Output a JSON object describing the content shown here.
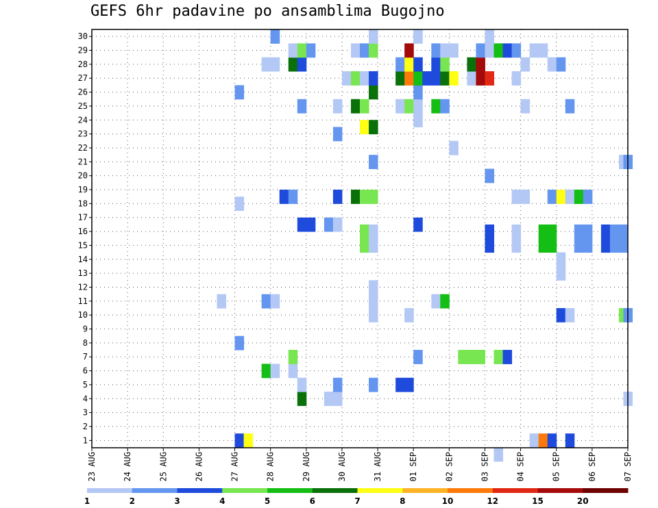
{
  "chart_data": {
    "type": "heatmap",
    "title": "GEFS 6hr padavine po ansamblima Bugojno",
    "xlabel": "",
    "ylabel": "",
    "x_labels": [
      "23 AUG",
      "24 AUG",
      "25 AUG",
      "26 AUG",
      "27 AUG",
      "28 AUG",
      "29 AUG",
      "30 AUG",
      "31 AUG",
      "01 SEP",
      "02 SEP",
      "03 SEP",
      "04 SEP",
      "05 SEP",
      "06 SEP",
      "07 SEP"
    ],
    "y_range": [
      1,
      30
    ],
    "x_range_days": [
      0,
      15
    ],
    "grid": true,
    "legend_placement": "bottom",
    "legend": {
      "labels": [
        "1",
        "2",
        "3",
        "4",
        "5",
        "6",
        "7",
        "8",
        "10",
        "12",
        "15",
        "20"
      ],
      "colors": [
        "#b4c8f5",
        "#6496f0",
        "#1e4bdc",
        "#78e650",
        "#14be14",
        "#0a700a",
        "#ffff14",
        "#ffb428",
        "#ff7a0a",
        "#e12814",
        "#a50a0a",
        "#6e0000"
      ]
    },
    "cells": [
      {
        "x": 4.125,
        "y": 1,
        "c": 3
      },
      {
        "x": 4.375,
        "y": 1,
        "c": 7
      },
      {
        "x": 12.375,
        "y": 1,
        "c": 1
      },
      {
        "x": 12.625,
        "y": 1,
        "c": 9
      },
      {
        "x": 12.875,
        "y": 1,
        "c": 3
      },
      {
        "x": 13.375,
        "y": 1,
        "c": 3
      },
      {
        "x": 11.375,
        "y": 0,
        "c": 1
      },
      {
        "x": 5.875,
        "y": 4,
        "c": 6
      },
      {
        "x": 6.625,
        "y": 4,
        "c": 1
      },
      {
        "x": 6.875,
        "y": 4,
        "c": 1
      },
      {
        "x": 15,
        "y": 4,
        "c": 1
      },
      {
        "x": 5.875,
        "y": 5,
        "c": 1
      },
      {
        "x": 6.875,
        "y": 5,
        "c": 2
      },
      {
        "x": 7.875,
        "y": 5,
        "c": 2
      },
      {
        "x": 8.625,
        "y": 5,
        "c": 3
      },
      {
        "x": 8.875,
        "y": 5,
        "c": 3
      },
      {
        "x": 4.875,
        "y": 6,
        "c": 5
      },
      {
        "x": 5.125,
        "y": 6,
        "c": 1
      },
      {
        "x": 5.625,
        "y": 6,
        "c": 1
      },
      {
        "x": 5.625,
        "y": 7,
        "c": 4
      },
      {
        "x": 9.125,
        "y": 7,
        "c": 2
      },
      {
        "x": 10.375,
        "y": 7,
        "c": 4
      },
      {
        "x": 10.625,
        "y": 7,
        "c": 4
      },
      {
        "x": 10.875,
        "y": 7,
        "c": 4
      },
      {
        "x": 11.375,
        "y": 7,
        "c": 4
      },
      {
        "x": 11.625,
        "y": 7,
        "c": 3
      },
      {
        "x": 4.125,
        "y": 8,
        "c": 2
      },
      {
        "x": 7.875,
        "y": 10,
        "c": 1
      },
      {
        "x": 8.875,
        "y": 10,
        "c": 1
      },
      {
        "x": 13.125,
        "y": 10,
        "c": 3
      },
      {
        "x": 13.375,
        "y": 10,
        "c": 1
      },
      {
        "x": 14.875,
        "y": 10,
        "c": 4
      },
      {
        "x": 15,
        "y": 10,
        "c": 2
      },
      {
        "x": 3.625,
        "y": 11,
        "c": 1
      },
      {
        "x": 4.875,
        "y": 11,
        "c": 2
      },
      {
        "x": 5.125,
        "y": 11,
        "c": 1
      },
      {
        "x": 7.875,
        "y": 11,
        "c": 1
      },
      {
        "x": 9.625,
        "y": 11,
        "c": 1
      },
      {
        "x": 9.875,
        "y": 11,
        "c": 5
      },
      {
        "x": 7.875,
        "y": 12,
        "c": 1
      },
      {
        "x": 13.125,
        "y": 13,
        "c": 1
      },
      {
        "x": 13.125,
        "y": 14,
        "c": 1
      },
      {
        "x": 7.625,
        "y": 15,
        "c": 4
      },
      {
        "x": 7.875,
        "y": 15,
        "c": 1
      },
      {
        "x": 11.125,
        "y": 15,
        "c": 3
      },
      {
        "x": 11.875,
        "y": 15,
        "c": 1
      },
      {
        "x": 12.625,
        "y": 15,
        "c": 5
      },
      {
        "x": 12.875,
        "y": 15,
        "c": 5
      },
      {
        "x": 13.625,
        "y": 15,
        "c": 2
      },
      {
        "x": 13.875,
        "y": 15,
        "c": 2
      },
      {
        "x": 14.375,
        "y": 15,
        "c": 3
      },
      {
        "x": 14.625,
        "y": 15,
        "c": 2
      },
      {
        "x": 14.875,
        "y": 15,
        "c": 2
      },
      {
        "x": 7.625,
        "y": 16,
        "c": 4
      },
      {
        "x": 7.875,
        "y": 16,
        "c": 1
      },
      {
        "x": 11.125,
        "y": 16,
        "c": 3
      },
      {
        "x": 11.875,
        "y": 16,
        "c": 1
      },
      {
        "x": 12.625,
        "y": 16,
        "c": 5
      },
      {
        "x": 12.875,
        "y": 16,
        "c": 5
      },
      {
        "x": 13.625,
        "y": 16,
        "c": 2
      },
      {
        "x": 13.875,
        "y": 16,
        "c": 2
      },
      {
        "x": 14.375,
        "y": 16,
        "c": 3
      },
      {
        "x": 14.625,
        "y": 16,
        "c": 2
      },
      {
        "x": 14.875,
        "y": 16,
        "c": 2
      },
      {
        "x": 5.875,
        "y": 16.5,
        "c": 3
      },
      {
        "x": 6.125,
        "y": 16.5,
        "c": 3
      },
      {
        "x": 6.625,
        "y": 16.5,
        "c": 2
      },
      {
        "x": 6.875,
        "y": 16.5,
        "c": 1
      },
      {
        "x": 9.125,
        "y": 16.5,
        "c": 3
      },
      {
        "x": 4.125,
        "y": 18,
        "c": 1
      },
      {
        "x": 5.375,
        "y": 18.5,
        "c": 3
      },
      {
        "x": 5.625,
        "y": 18.5,
        "c": 2
      },
      {
        "x": 6.875,
        "y": 18.5,
        "c": 3
      },
      {
        "x": 7.375,
        "y": 18.5,
        "c": 6
      },
      {
        "x": 7.625,
        "y": 18.5,
        "c": 4
      },
      {
        "x": 7.875,
        "y": 18.5,
        "c": 4
      },
      {
        "x": 11.875,
        "y": 18.5,
        "c": 1
      },
      {
        "x": 12.125,
        "y": 18.5,
        "c": 1
      },
      {
        "x": 12.875,
        "y": 18.5,
        "c": 2
      },
      {
        "x": 13.125,
        "y": 18.5,
        "c": 7
      },
      {
        "x": 13.375,
        "y": 18.5,
        "c": 1
      },
      {
        "x": 13.625,
        "y": 18.5,
        "c": 5
      },
      {
        "x": 13.875,
        "y": 18.5,
        "c": 2
      },
      {
        "x": 11.125,
        "y": 20,
        "c": 2
      },
      {
        "x": 7.875,
        "y": 21,
        "c": 2
      },
      {
        "x": 14.875,
        "y": 21,
        "c": 1
      },
      {
        "x": 15,
        "y": 21,
        "c": 2
      },
      {
        "x": 10.125,
        "y": 22,
        "c": 1
      },
      {
        "x": 6.875,
        "y": 23,
        "c": 2
      },
      {
        "x": 7.625,
        "y": 23.5,
        "c": 7
      },
      {
        "x": 7.875,
        "y": 23.5,
        "c": 6
      },
      {
        "x": 5.875,
        "y": 25,
        "c": 2
      },
      {
        "x": 6.875,
        "y": 25,
        "c": 1
      },
      {
        "x": 7.375,
        "y": 25,
        "c": 6
      },
      {
        "x": 7.625,
        "y": 25,
        "c": 4
      },
      {
        "x": 8.625,
        "y": 25,
        "c": 1
      },
      {
        "x": 8.875,
        "y": 25,
        "c": 4
      },
      {
        "x": 9.125,
        "y": 25,
        "c": 1
      },
      {
        "x": 9.625,
        "y": 25,
        "c": 5
      },
      {
        "x": 9.875,
        "y": 25,
        "c": 2
      },
      {
        "x": 12.125,
        "y": 25,
        "c": 1
      },
      {
        "x": 13.375,
        "y": 25,
        "c": 2
      },
      {
        "x": 9.125,
        "y": 24,
        "c": 1
      },
      {
        "x": 4.125,
        "y": 26,
        "c": 2
      },
      {
        "x": 7.875,
        "y": 26,
        "c": 6
      },
      {
        "x": 9.125,
        "y": 26,
        "c": 2
      },
      {
        "x": 7.125,
        "y": 27,
        "c": 1
      },
      {
        "x": 7.375,
        "y": 27,
        "c": 4
      },
      {
        "x": 7.625,
        "y": 27,
        "c": 1
      },
      {
        "x": 7.875,
        "y": 27,
        "c": 3
      },
      {
        "x": 8.625,
        "y": 27,
        "c": 6
      },
      {
        "x": 8.875,
        "y": 27,
        "c": 9
      },
      {
        "x": 9.125,
        "y": 27,
        "c": 5
      },
      {
        "x": 9.375,
        "y": 27,
        "c": 3
      },
      {
        "x": 9.625,
        "y": 27,
        "c": 3
      },
      {
        "x": 9.875,
        "y": 27,
        "c": 6
      },
      {
        "x": 10.125,
        "y": 27,
        "c": 7
      },
      {
        "x": 10.625,
        "y": 27,
        "c": 1
      },
      {
        "x": 10.875,
        "y": 27,
        "c": 11
      },
      {
        "x": 11.125,
        "y": 27,
        "c": 10
      },
      {
        "x": 11.875,
        "y": 27,
        "c": 1
      },
      {
        "x": 4.875,
        "y": 28,
        "c": 1
      },
      {
        "x": 5.125,
        "y": 28,
        "c": 1
      },
      {
        "x": 5.625,
        "y": 28,
        "c": 6
      },
      {
        "x": 5.875,
        "y": 28,
        "c": 3
      },
      {
        "x": 8.625,
        "y": 28,
        "c": 2
      },
      {
        "x": 8.875,
        "y": 28,
        "c": 7
      },
      {
        "x": 9.125,
        "y": 28,
        "c": 3
      },
      {
        "x": 9.625,
        "y": 28,
        "c": 3
      },
      {
        "x": 9.875,
        "y": 28,
        "c": 4
      },
      {
        "x": 10.625,
        "y": 28,
        "c": 6
      },
      {
        "x": 10.875,
        "y": 28,
        "c": 11
      },
      {
        "x": 12.125,
        "y": 28,
        "c": 1
      },
      {
        "x": 12.875,
        "y": 28,
        "c": 1
      },
      {
        "x": 13.125,
        "y": 28,
        "c": 2
      },
      {
        "x": 5.625,
        "y": 29,
        "c": 1
      },
      {
        "x": 5.875,
        "y": 29,
        "c": 4
      },
      {
        "x": 6.125,
        "y": 29,
        "c": 2
      },
      {
        "x": 7.375,
        "y": 29,
        "c": 1
      },
      {
        "x": 7.625,
        "y": 29,
        "c": 2
      },
      {
        "x": 7.875,
        "y": 29,
        "c": 4
      },
      {
        "x": 8.875,
        "y": 29,
        "c": 11
      },
      {
        "x": 9.625,
        "y": 29,
        "c": 2
      },
      {
        "x": 9.875,
        "y": 29,
        "c": 1
      },
      {
        "x": 10.125,
        "y": 29,
        "c": 1
      },
      {
        "x": 10.875,
        "y": 29,
        "c": 2
      },
      {
        "x": 11.125,
        "y": 29,
        "c": 1
      },
      {
        "x": 11.375,
        "y": 29,
        "c": 5
      },
      {
        "x": 11.625,
        "y": 29,
        "c": 3
      },
      {
        "x": 11.875,
        "y": 29,
        "c": 2
      },
      {
        "x": 12.375,
        "y": 29,
        "c": 1
      },
      {
        "x": 12.625,
        "y": 29,
        "c": 1
      },
      {
        "x": 5.125,
        "y": 30,
        "c": 2
      },
      {
        "x": 7.875,
        "y": 30,
        "c": 1
      },
      {
        "x": 9.125,
        "y": 30,
        "c": 1
      },
      {
        "x": 11.125,
        "y": 30,
        "c": 1
      }
    ]
  }
}
